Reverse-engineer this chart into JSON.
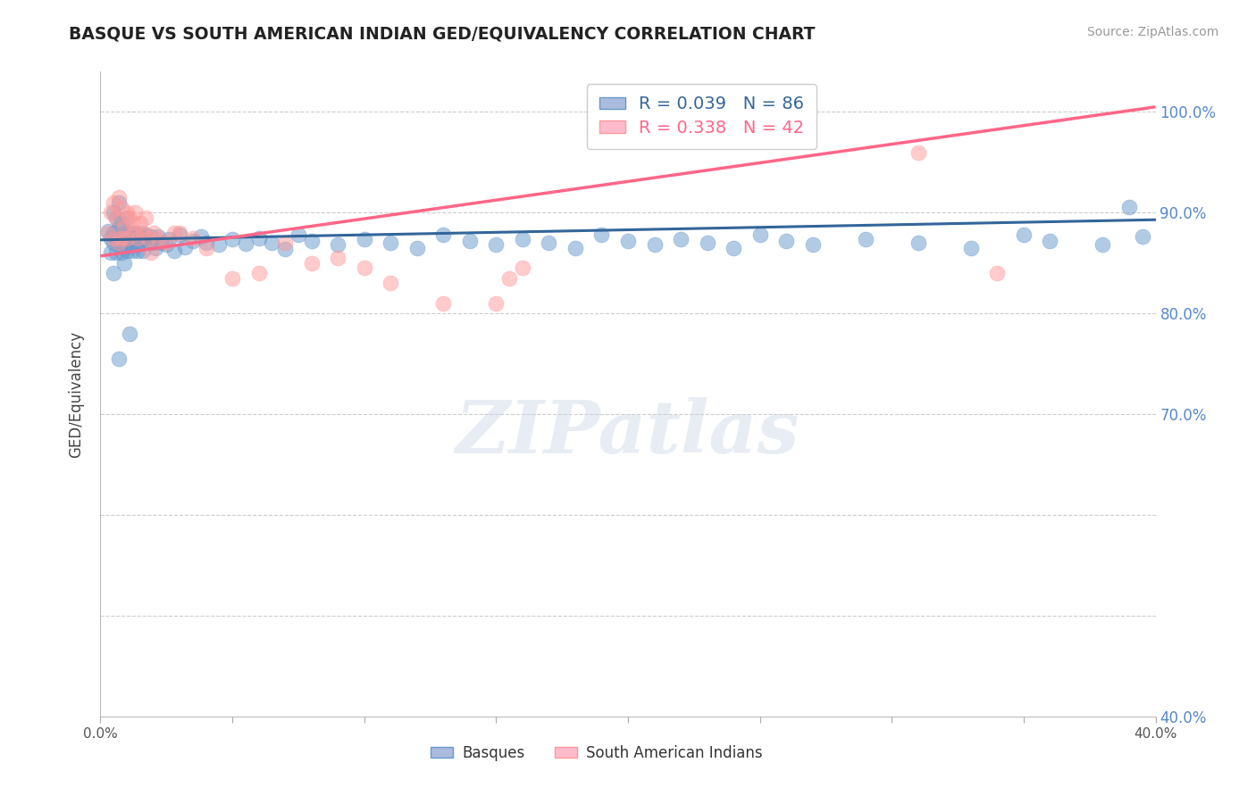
{
  "title": "BASQUE VS SOUTH AMERICAN INDIAN GED/EQUIVALENCY CORRELATION CHART",
  "source": "Source: ZipAtlas.com",
  "ylabel": "GED/Equivalency",
  "xlim": [
    0.0,
    0.4
  ],
  "ylim": [
    0.4,
    1.04
  ],
  "xtick_positions": [
    0.0,
    0.05,
    0.1,
    0.15,
    0.2,
    0.25,
    0.3,
    0.35,
    0.4
  ],
  "xtick_labels": [
    "0.0%",
    "",
    "",
    "",
    "",
    "",
    "",
    "",
    "40.0%"
  ],
  "ytick_positions": [
    0.4,
    0.5,
    0.6,
    0.7,
    0.8,
    0.9,
    1.0
  ],
  "ytick_labels": [
    "40.0%",
    "",
    "",
    "70.0%",
    "80.0%",
    "90.0%",
    "100.0%"
  ],
  "legend_blue_label": "R = 0.039   N = 86",
  "legend_pink_label": "R = 0.338   N = 42",
  "legend_blue_series": "Basques",
  "legend_pink_series": "South American Indians",
  "blue_color": "#6699CC",
  "pink_color": "#FF9999",
  "blue_line_color": "#336699",
  "pink_line_color": "#FF6688",
  "ytick_color": "#5588CC",
  "watermark_text": "ZIPatlas",
  "blue_trend": [
    0.873,
    0.893
  ],
  "pink_trend": [
    0.857,
    1.005
  ],
  "blue_x": [
    0.003,
    0.004,
    0.004,
    0.005,
    0.005,
    0.005,
    0.006,
    0.006,
    0.006,
    0.007,
    0.007,
    0.007,
    0.008,
    0.008,
    0.008,
    0.009,
    0.009,
    0.01,
    0.01,
    0.01,
    0.011,
    0.011,
    0.012,
    0.012,
    0.013,
    0.013,
    0.014,
    0.014,
    0.015,
    0.015,
    0.016,
    0.016,
    0.017,
    0.018,
    0.019,
    0.02,
    0.021,
    0.022,
    0.023,
    0.025,
    0.026,
    0.028,
    0.03,
    0.032,
    0.035,
    0.038,
    0.04,
    0.045,
    0.05,
    0.055,
    0.06,
    0.065,
    0.07,
    0.075,
    0.08,
    0.09,
    0.1,
    0.11,
    0.12,
    0.13,
    0.14,
    0.15,
    0.16,
    0.17,
    0.18,
    0.19,
    0.2,
    0.21,
    0.22,
    0.23,
    0.24,
    0.25,
    0.26,
    0.27,
    0.29,
    0.31,
    0.33,
    0.35,
    0.36,
    0.38,
    0.39,
    0.395,
    0.005,
    0.007,
    0.009,
    0.011
  ],
  "blue_y": [
    0.882,
    0.875,
    0.86,
    0.9,
    0.88,
    0.87,
    0.895,
    0.875,
    0.86,
    0.91,
    0.885,
    0.87,
    0.89,
    0.875,
    0.86,
    0.88,
    0.865,
    0.895,
    0.875,
    0.862,
    0.88,
    0.87,
    0.875,
    0.862,
    0.88,
    0.87,
    0.875,
    0.862,
    0.88,
    0.87,
    0.875,
    0.862,
    0.878,
    0.872,
    0.876,
    0.87,
    0.865,
    0.876,
    0.87,
    0.868,
    0.874,
    0.862,
    0.878,
    0.866,
    0.872,
    0.876,
    0.87,
    0.868,
    0.874,
    0.869,
    0.875,
    0.87,
    0.864,
    0.878,
    0.872,
    0.868,
    0.874,
    0.87,
    0.865,
    0.878,
    0.872,
    0.868,
    0.874,
    0.87,
    0.865,
    0.878,
    0.872,
    0.868,
    0.874,
    0.87,
    0.865,
    0.878,
    0.872,
    0.868,
    0.874,
    0.87,
    0.865,
    0.878,
    0.872,
    0.868,
    0.906,
    0.876,
    0.84,
    0.755,
    0.85,
    0.78
  ],
  "pink_x": [
    0.003,
    0.004,
    0.005,
    0.005,
    0.006,
    0.007,
    0.007,
    0.008,
    0.008,
    0.009,
    0.01,
    0.01,
    0.011,
    0.012,
    0.013,
    0.013,
    0.014,
    0.015,
    0.016,
    0.017,
    0.018,
    0.019,
    0.02,
    0.022,
    0.025,
    0.028,
    0.03,
    0.035,
    0.04,
    0.05,
    0.06,
    0.07,
    0.08,
    0.09,
    0.1,
    0.11,
    0.13,
    0.15,
    0.155,
    0.16,
    0.31,
    0.34
  ],
  "pink_y": [
    0.88,
    0.9,
    0.91,
    0.875,
    0.895,
    0.915,
    0.87,
    0.905,
    0.875,
    0.885,
    0.9,
    0.875,
    0.895,
    0.89,
    0.88,
    0.9,
    0.875,
    0.89,
    0.88,
    0.895,
    0.875,
    0.86,
    0.88,
    0.875,
    0.87,
    0.88,
    0.88,
    0.875,
    0.865,
    0.835,
    0.84,
    0.87,
    0.85,
    0.855,
    0.845,
    0.83,
    0.81,
    0.81,
    0.835,
    0.845,
    0.96,
    0.84
  ]
}
